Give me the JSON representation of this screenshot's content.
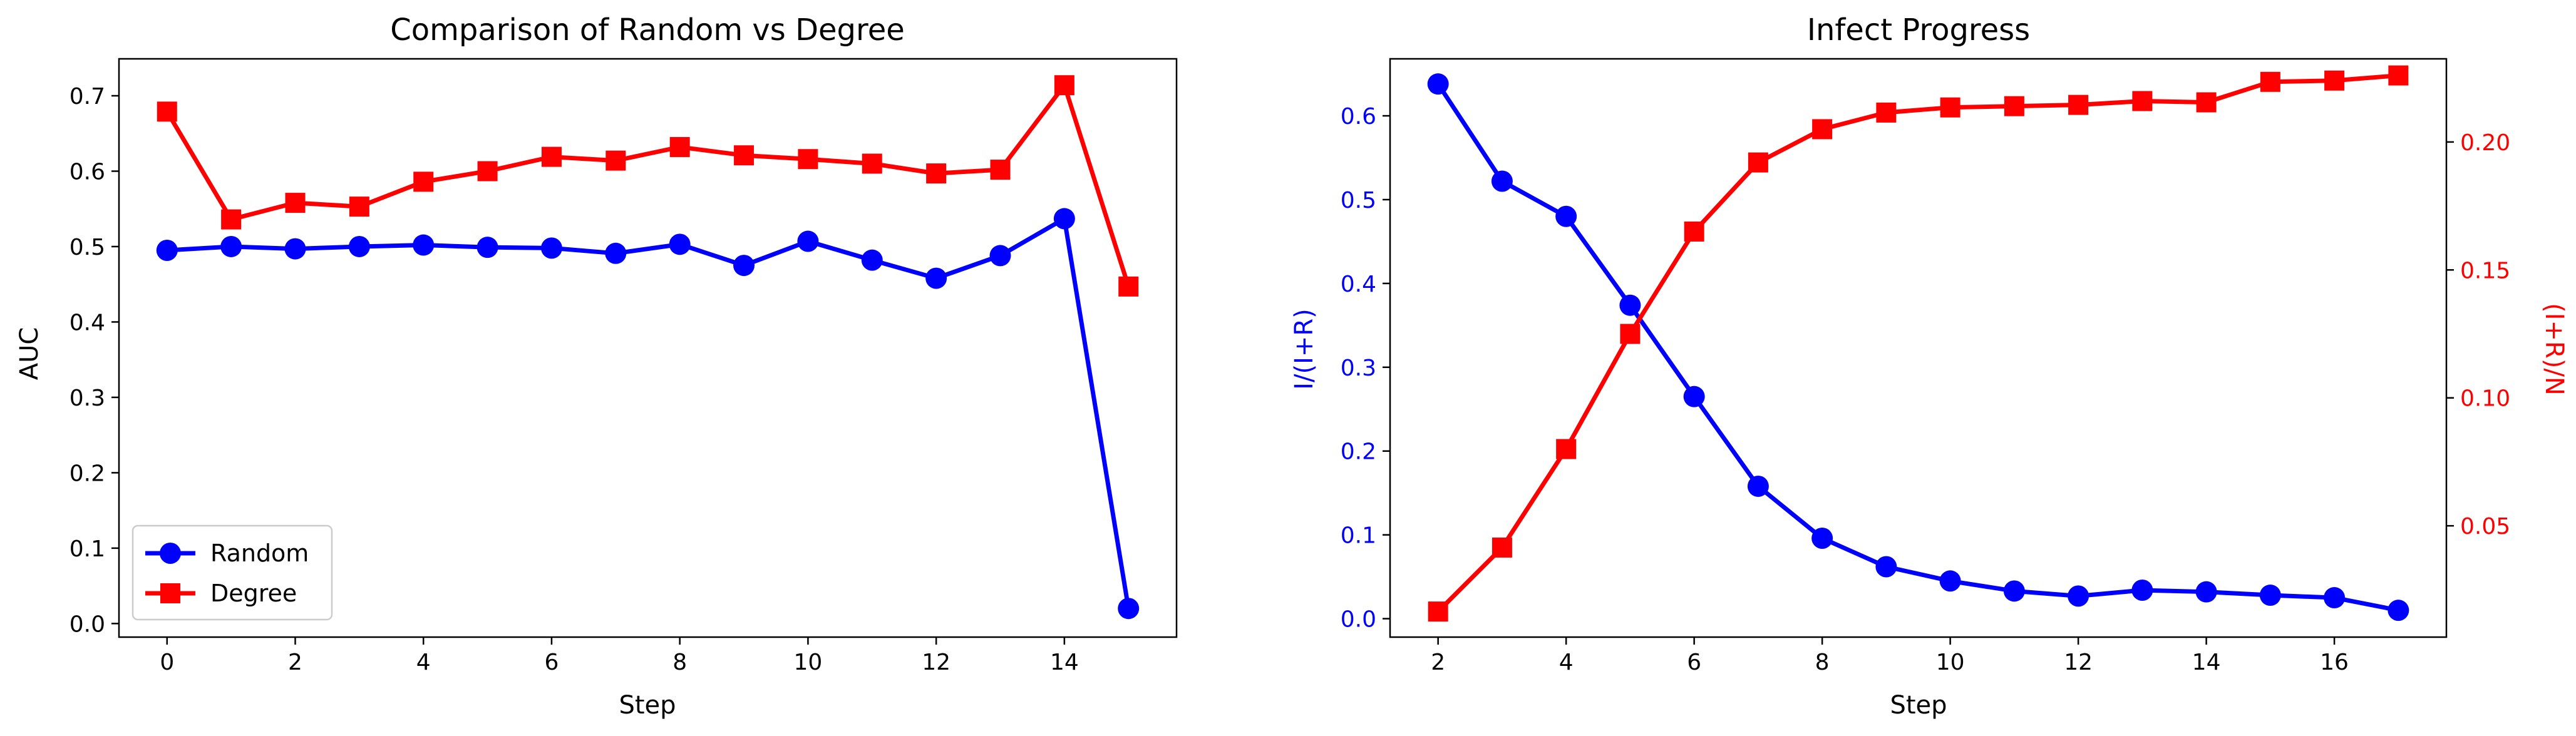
{
  "chart_data": [
    {
      "type": "line",
      "title": "Comparison of Random vs Degree",
      "xlabel": "Step",
      "ylabel": "AUC",
      "xlim": [
        -0.75,
        15.75
      ],
      "ylim": [
        -0.018,
        0.749
      ],
      "xticks": [
        0,
        2,
        4,
        6,
        8,
        10,
        12,
        14
      ],
      "xtick_labels": [
        "0",
        "2",
        "4",
        "6",
        "8",
        "10",
        "12",
        "14"
      ],
      "yticks": [
        0.0,
        0.1,
        0.2,
        0.3,
        0.4,
        0.5,
        0.6,
        0.7
      ],
      "ytick_labels": [
        "0.0",
        "0.1",
        "0.2",
        "0.3",
        "0.4",
        "0.5",
        "0.6",
        "0.7"
      ],
      "grid": false,
      "legend_position": "lower-left",
      "x": [
        0,
        1,
        2,
        3,
        4,
        5,
        6,
        7,
        8,
        9,
        10,
        11,
        12,
        13,
        14,
        15
      ],
      "series": [
        {
          "name": "Random",
          "color": "#0000ff",
          "marker": "circle",
          "values": [
            0.495,
            0.5,
            0.497,
            0.5,
            0.502,
            0.499,
            0.498,
            0.491,
            0.503,
            0.475,
            0.507,
            0.482,
            0.458,
            0.488,
            0.537,
            0.02
          ]
        },
        {
          "name": "Degree",
          "color": "#ff0000",
          "marker": "square",
          "values": [
            0.679,
            0.536,
            0.558,
            0.553,
            0.586,
            0.6,
            0.619,
            0.614,
            0.632,
            0.621,
            0.616,
            0.61,
            0.597,
            0.602,
            0.714,
            0.447
          ]
        }
      ]
    },
    {
      "type": "line",
      "title": "Infect Progress",
      "xlabel": "Step",
      "ylabel_left": "I/(I+R)",
      "ylabel_right": "(I+R)/N",
      "xlim": [
        1.25,
        17.75
      ],
      "ylim_left": [
        -0.022,
        0.668
      ],
      "ylim_right": [
        0.0065,
        0.2325
      ],
      "xticks": [
        2,
        4,
        6,
        8,
        10,
        12,
        14,
        16
      ],
      "xtick_labels": [
        "2",
        "4",
        "6",
        "8",
        "10",
        "12",
        "14",
        "16"
      ],
      "yticks_left": [
        0.0,
        0.1,
        0.2,
        0.3,
        0.4,
        0.5,
        0.6
      ],
      "ytick_labels_left": [
        "0.0",
        "0.1",
        "0.2",
        "0.3",
        "0.4",
        "0.5",
        "0.6"
      ],
      "yticks_right": [
        0.05,
        0.1,
        0.15,
        0.2
      ],
      "ytick_labels_right": [
        "0.05",
        "0.10",
        "0.15",
        "0.20"
      ],
      "left_axis_color": "#0000ff",
      "right_axis_color": "#ff0000",
      "grid": false,
      "x": [
        2,
        3,
        4,
        5,
        6,
        7,
        8,
        9,
        10,
        11,
        12,
        13,
        14,
        15,
        16,
        17
      ],
      "series": [
        {
          "axis": "left",
          "color": "#0000ff",
          "marker": "circle",
          "values": [
            0.638,
            0.522,
            0.48,
            0.374,
            0.265,
            0.158,
            0.096,
            0.062,
            0.045,
            0.033,
            0.027,
            0.034,
            0.032,
            0.028,
            0.025,
            0.01
          ]
        },
        {
          "axis": "right",
          "color": "#ff0000",
          "marker": "square",
          "values": [
            0.0165,
            0.0415,
            0.08,
            0.125,
            0.165,
            0.192,
            0.205,
            0.2115,
            0.2135,
            0.214,
            0.2145,
            0.216,
            0.2155,
            0.2235,
            0.224,
            0.226
          ]
        }
      ]
    }
  ]
}
